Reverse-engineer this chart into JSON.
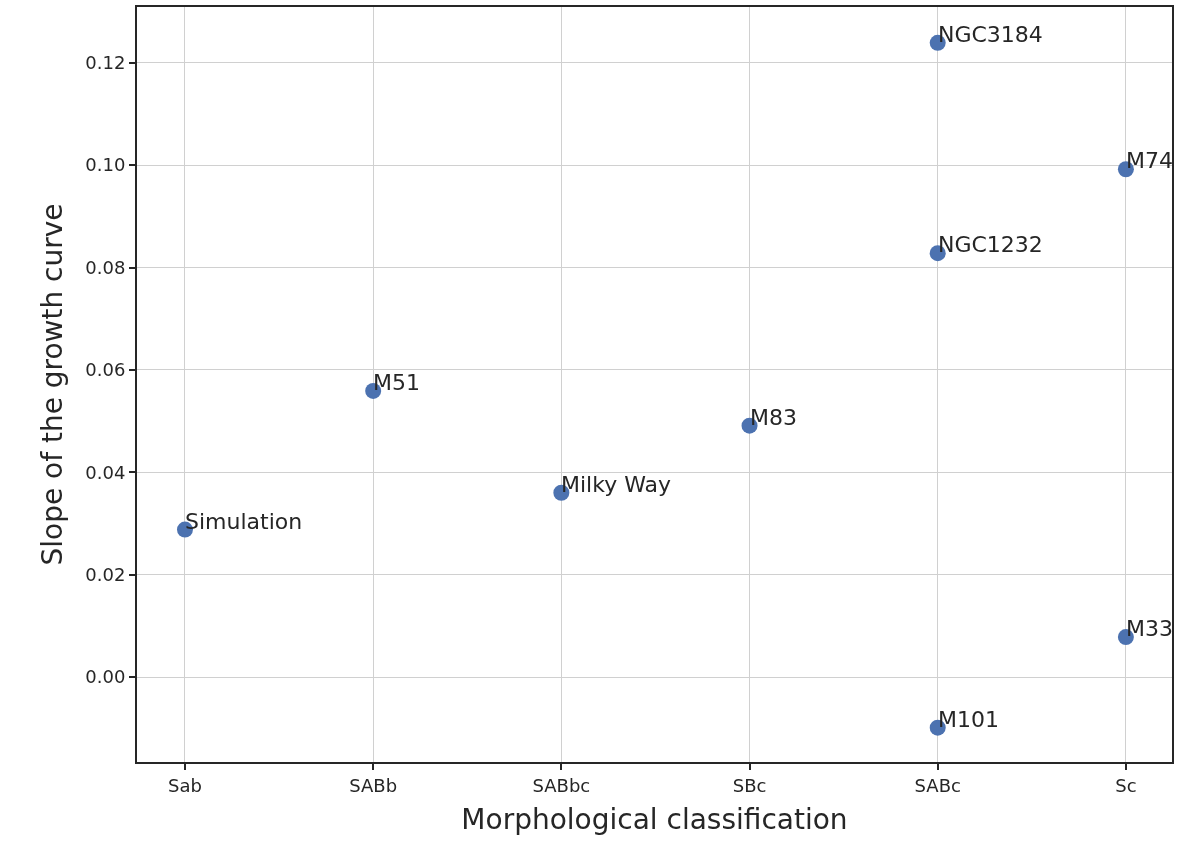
{
  "chart_data": {
    "type": "scatter",
    "xlabel": "Morphological classification",
    "ylabel": "Slope of the growth curve",
    "categories": [
      "Sab",
      "SABb",
      "SABbc",
      "SBc",
      "SABc",
      "Sc"
    ],
    "series": [
      {
        "color": "#4c72b0",
        "x": [
          "Sab",
          "SABb",
          "SABbc",
          "SBc",
          "SABc",
          "SABc",
          "SABc",
          "Sc",
          "Sc"
        ],
        "values": [
          0.0288,
          0.0559,
          0.036,
          0.0491,
          0.1239,
          0.0828,
          -0.0099,
          0.0992,
          0.0078
        ]
      }
    ],
    "annotations": [
      {
        "text": "Simulation",
        "x": "Sab",
        "y": 0.0288
      },
      {
        "text": "M51",
        "x": "SABb",
        "y": 0.0559
      },
      {
        "text": "Milky Way",
        "x": "SABbc",
        "y": 0.036
      },
      {
        "text": "M83",
        "x": "SBc",
        "y": 0.0491
      },
      {
        "text": "NGC3184",
        "x": "SABc",
        "y": 0.1239
      },
      {
        "text": "NGC1232",
        "x": "SABc",
        "y": 0.0828
      },
      {
        "text": "M101",
        "x": "SABc",
        "y": -0.0099
      },
      {
        "text": "M74",
        "x": "Sc",
        "y": 0.0992
      },
      {
        "text": "M33",
        "x": "Sc",
        "y": 0.0078
      }
    ],
    "ylim": [
      -0.0166,
      0.1309
    ],
    "yticks": [
      {
        "value": 0,
        "label": "0.00"
      },
      {
        "value": 0.02,
        "label": "0.02"
      },
      {
        "value": 0.04,
        "label": "0.04"
      },
      {
        "value": 0.06,
        "label": "0.06"
      },
      {
        "value": 0.08,
        "label": "0.08"
      },
      {
        "value": 0.1,
        "label": "0.10"
      },
      {
        "value": 0.12,
        "label": "0.12"
      }
    ],
    "grid": true,
    "marker": "circle"
  }
}
